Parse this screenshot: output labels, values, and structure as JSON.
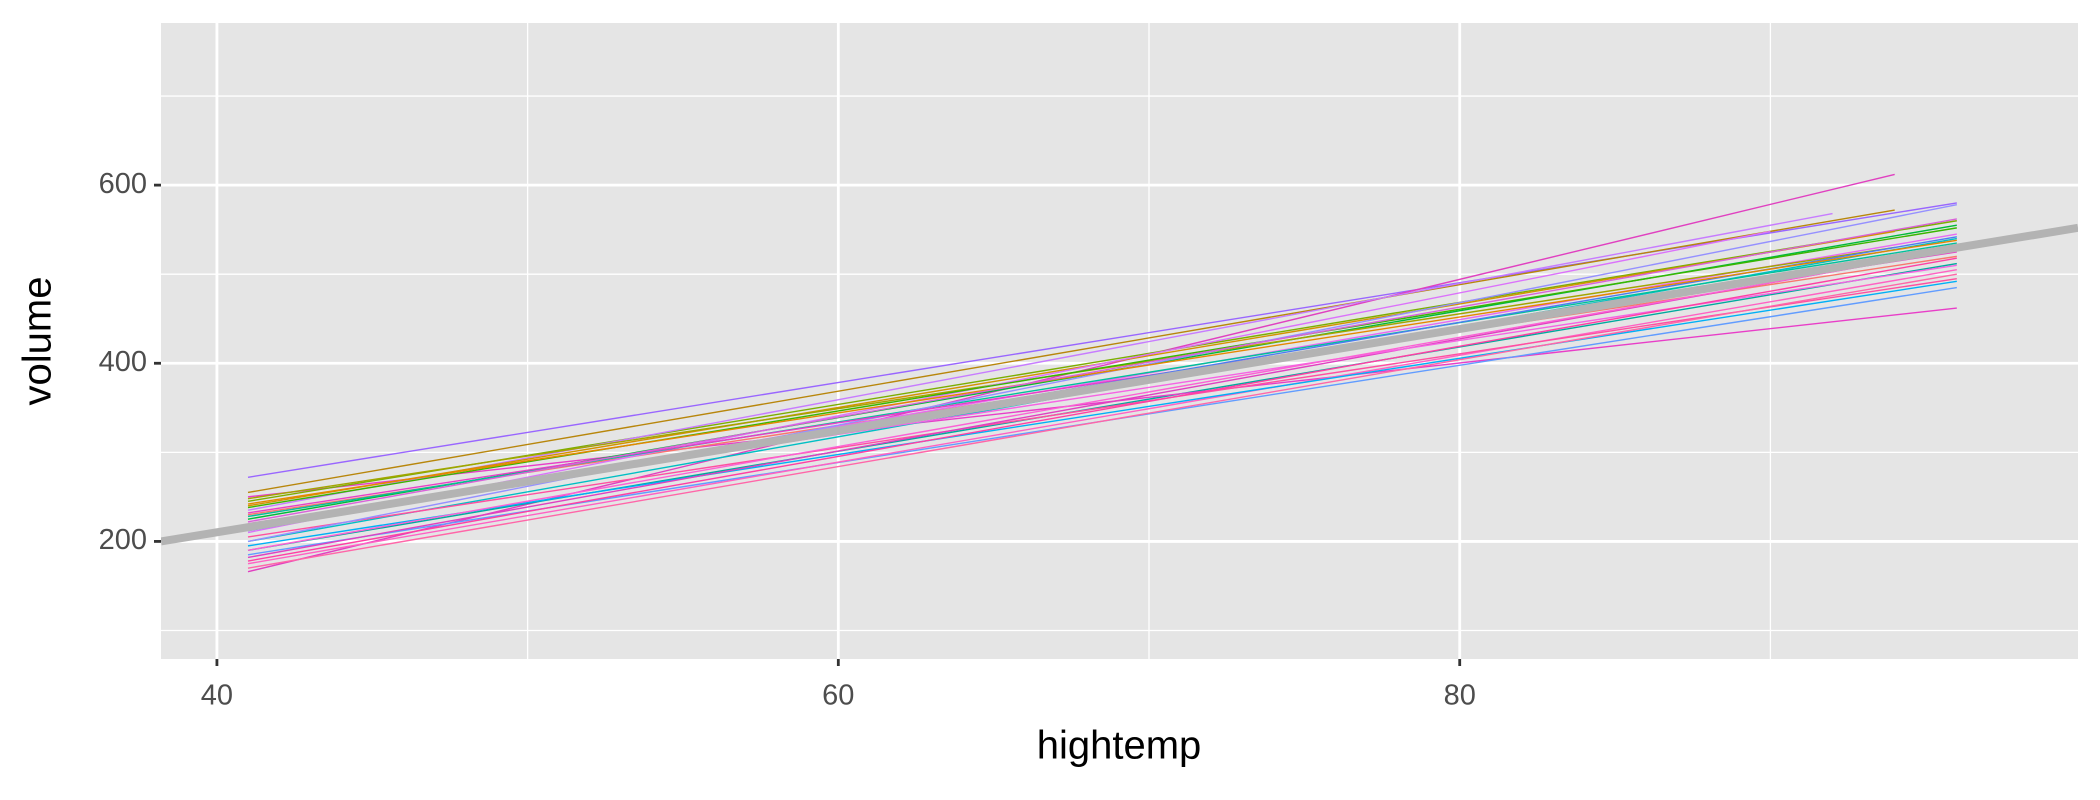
{
  "chart_data": {
    "type": "line",
    "x_label": "hightemp",
    "y_label": "volume",
    "xlim": [
      38.2,
      99.9
    ],
    "ylim": [
      68,
      782
    ],
    "xticks": [
      40,
      60,
      80
    ],
    "yticks": [
      200,
      400,
      600
    ],
    "xgrid_minor": [
      50,
      70,
      90
    ],
    "ygrid_minor": [
      100,
      300,
      500,
      700
    ],
    "grid": true,
    "series": [
      {
        "color": "#9966ff",
        "x": [
          41,
          96
        ],
        "values": [
          272,
          580
        ]
      },
      {
        "color": "#e040c0",
        "x": [
          41,
          94
        ],
        "values": [
          166,
          612
        ]
      },
      {
        "color": "#00a99d",
        "x": [
          41,
          96
        ],
        "values": [
          190,
          512
        ]
      },
      {
        "color": "#e83ec8",
        "x": [
          41,
          96
        ],
        "values": [
          250,
          462
        ]
      },
      {
        "color": "#b8860b",
        "x": [
          41,
          94
        ],
        "values": [
          255,
          572
        ]
      },
      {
        "color": "#7cae00",
        "x": [
          41,
          96
        ],
        "values": [
          245,
          560
        ]
      },
      {
        "color": "#f8766d",
        "x": [
          41,
          96
        ],
        "values": [
          230,
          520
        ]
      },
      {
        "color": "#00bfc4",
        "x": [
          41,
          96
        ],
        "values": [
          200,
          540
        ]
      },
      {
        "color": "#619cff",
        "x": [
          41,
          96
        ],
        "values": [
          185,
          485
        ]
      },
      {
        "color": "#c77cff",
        "x": [
          41,
          92
        ],
        "values": [
          235,
          568
        ]
      },
      {
        "color": "#ff61c3",
        "x": [
          41,
          96
        ],
        "values": [
          175,
          505
        ]
      },
      {
        "color": "#e76bf3",
        "x": [
          41,
          96
        ],
        "values": [
          215,
          545
        ]
      },
      {
        "color": "#00ba38",
        "x": [
          41,
          96
        ],
        "values": [
          225,
          555
        ]
      },
      {
        "color": "#d39200",
        "x": [
          41,
          94
        ],
        "values": [
          240,
          548
        ]
      },
      {
        "color": "#ff4fa0",
        "x": [
          41,
          96
        ],
        "values": [
          205,
          495
        ]
      },
      {
        "color": "#00b0f6",
        "x": [
          41,
          96
        ],
        "values": [
          195,
          492
        ]
      },
      {
        "color": "#a3a500",
        "x": [
          41,
          94
        ],
        "values": [
          248,
          530
        ]
      },
      {
        "color": "#e040c0",
        "x": [
          41,
          96
        ],
        "values": [
          182,
          528
        ]
      },
      {
        "color": "#f564e3",
        "x": [
          41,
          96
        ],
        "values": [
          220,
          510
        ]
      },
      {
        "color": "#db72fb",
        "x": [
          41,
          90
        ],
        "values": [
          210,
          548
        ]
      },
      {
        "color": "#ff66a8",
        "x": [
          41,
          96
        ],
        "values": [
          170,
          500
        ]
      },
      {
        "color": "#39b600",
        "x": [
          41,
          96
        ],
        "values": [
          238,
          552
        ]
      },
      {
        "color": "#00c19a",
        "x": [
          41,
          96
        ],
        "values": [
          228,
          535
        ]
      },
      {
        "color": "#9590ff",
        "x": [
          41,
          96
        ],
        "values": [
          200,
          578
        ]
      },
      {
        "color": "#e83ec8",
        "x": [
          41,
          96
        ],
        "values": [
          232,
          525
        ]
      },
      {
        "color": "#fc61d5",
        "x": [
          41,
          94
        ],
        "values": [
          190,
          515
        ]
      },
      {
        "color": "#4c7cf0",
        "x": [
          41,
          96
        ],
        "values": [
          212,
          542
        ]
      },
      {
        "color": "#e58700",
        "x": [
          41,
          96
        ],
        "values": [
          242,
          538
        ]
      },
      {
        "color": "#ff3fa4",
        "x": [
          41,
          96
        ],
        "values": [
          178,
          518
        ]
      },
      {
        "color": "#d962d9",
        "x": [
          41,
          96
        ],
        "values": [
          222,
          562
        ]
      },
      {
        "color": "#b3b3b3",
        "x": [
          38.2,
          99.9
        ],
        "values": [
          200,
          552
        ],
        "linewidth": 8
      }
    ]
  }
}
